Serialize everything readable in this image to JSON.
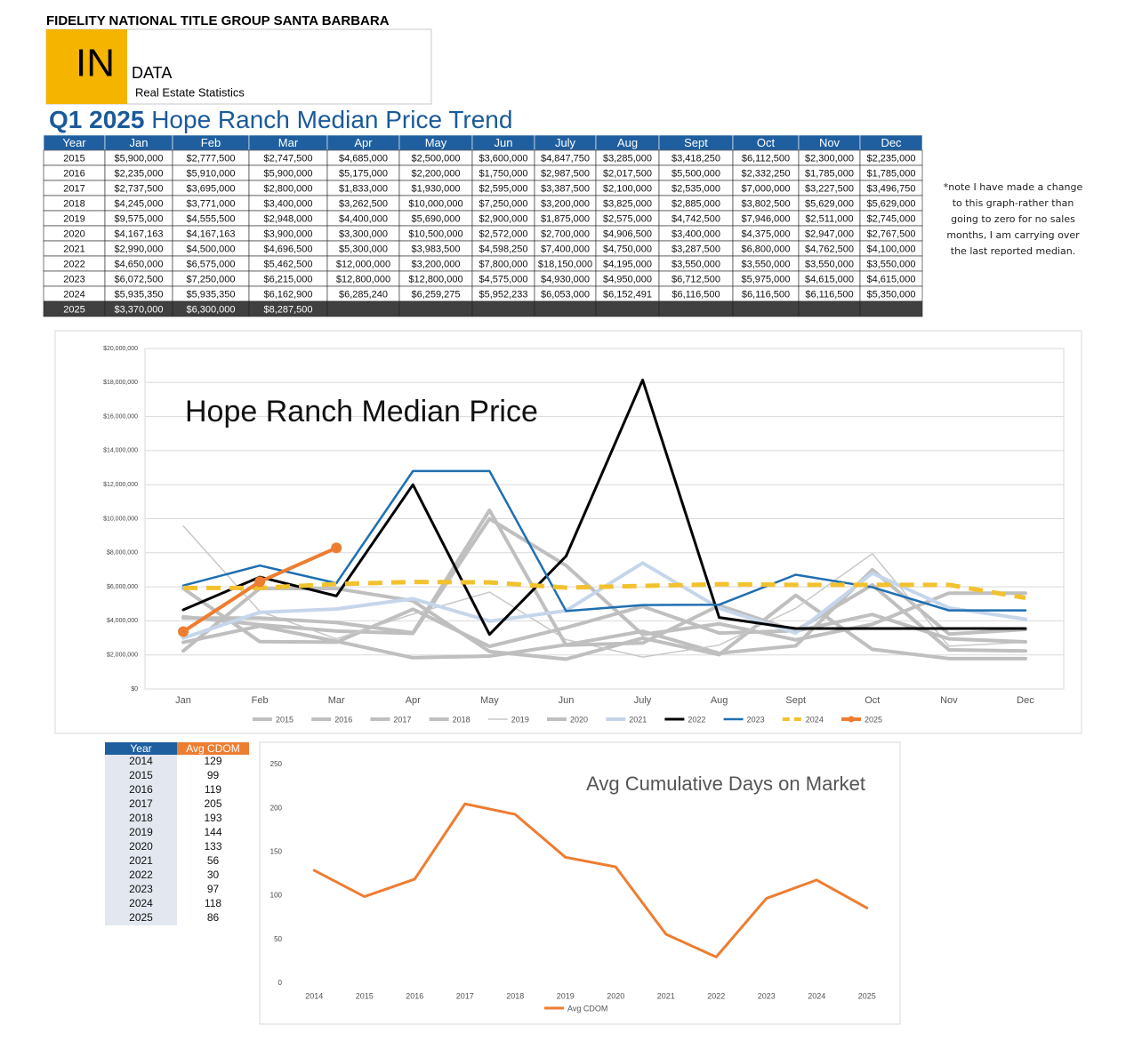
{
  "header": {
    "company": "FIDELITY NATIONAL TITLE GROUP SANTA BARBARA",
    "logo_mark": "IN",
    "logo_word": "DATA",
    "logo_tagline": "Real Estate Statistics"
  },
  "page_title": {
    "bold": "Q1 2025",
    "rest": "Hope Ranch Median Price Trend"
  },
  "price_table": {
    "year_header": "Year"
  },
  "note": "*note I have made a change to this graph-rather than going to zero for no sales months, I am carrying over the last reported median.",
  "cdom_table": {
    "year_header": "Year"
  },
  "chart_data": [
    {
      "type": "line",
      "title": "Hope Ranch Median Price",
      "categories": [
        "Jan",
        "Feb",
        "Mar",
        "Apr",
        "May",
        "Jun",
        "July",
        "Aug",
        "Sept",
        "Oct",
        "Nov",
        "Dec"
      ],
      "ylim": [
        0,
        20000000
      ],
      "yticks": [
        {
          "value": 0,
          "label": "$0"
        },
        {
          "value": 2000000,
          "label": "$2,000,000"
        },
        {
          "value": 4000000,
          "label": "$4,000,000"
        },
        {
          "value": 6000000,
          "label": "$6,000,000"
        },
        {
          "value": 8000000,
          "label": "$8,000,000"
        },
        {
          "value": 10000000,
          "label": "$10,000,000"
        },
        {
          "value": 12000000,
          "label": "$12,000,000"
        },
        {
          "value": 14000000,
          "label": "$14,000,000"
        },
        {
          "value": 16000000,
          "label": "$16,000,000"
        },
        {
          "value": 18000000,
          "label": "$18,000,000"
        },
        {
          "value": 20000000,
          "label": "$20,000,000"
        }
      ],
      "grid": true,
      "legend": "bottom",
      "series": [
        {
          "name": "2015",
          "color": "#bfbfbf",
          "width": 4,
          "values": [
            5900000,
            2777500,
            2747500,
            4685000,
            2500000,
            3600000,
            4847750,
            3285000,
            3418250,
            6112500,
            2300000,
            2235000
          ],
          "value_labels": [
            "$5,900,000",
            "$2,777,500",
            "$2,747,500",
            "$4,685,000",
            "$2,500,000",
            "$3,600,000",
            "$4,847,750",
            "$3,285,000",
            "$3,418,250",
            "$6,112,500",
            "$2,300,000",
            "$2,235,000"
          ]
        },
        {
          "name": "2016",
          "color": "#bfbfbf",
          "width": 4,
          "values": [
            2235000,
            5910000,
            5900000,
            5175000,
            2200000,
            1750000,
            2987500,
            2017500,
            5500000,
            2332250,
            1785000,
            1785000
          ],
          "value_labels": [
            "$2,235,000",
            "$5,910,000",
            "$5,900,000",
            "$5,175,000",
            "$2,200,000",
            "$1,750,000",
            "$2,987,500",
            "$2,017,500",
            "$5,500,000",
            "$2,332,250",
            "$1,785,000",
            "$1,785,000"
          ]
        },
        {
          "name": "2017",
          "color": "#bfbfbf",
          "width": 4,
          "values": [
            2737500,
            3695000,
            2800000,
            1833000,
            1930000,
            2595000,
            3387500,
            2100000,
            2535000,
            7000000,
            3227500,
            3496750
          ],
          "value_labels": [
            "$2,737,500",
            "$3,695,000",
            "$2,800,000",
            "$1,833,000",
            "$1,930,000",
            "$2,595,000",
            "$3,387,500",
            "$2,100,000",
            "$2,535,000",
            "$7,000,000",
            "$3,227,500",
            "$3,496,750"
          ]
        },
        {
          "name": "2018",
          "color": "#bfbfbf",
          "width": 4,
          "values": [
            4245000,
            3771000,
            3400000,
            3262500,
            10000000,
            7250000,
            3200000,
            3825000,
            2885000,
            3802500,
            5629000,
            5629000
          ],
          "value_labels": [
            "$4,245,000",
            "$3,771,000",
            "$3,400,000",
            "$3,262,500",
            "$10,000,000",
            "$7,250,000",
            "$3,200,000",
            "$3,825,000",
            "$2,885,000",
            "$3,802,500",
            "$5,629,000",
            "$5,629,000"
          ]
        },
        {
          "name": "2019",
          "color": "#c8c8c8",
          "width": 1.5,
          "values": [
            9575000,
            4555500,
            2948000,
            4400000,
            5690000,
            2900000,
            1875000,
            2575000,
            4742500,
            7946000,
            2511000,
            2745000
          ],
          "value_labels": [
            "$9,575,000",
            "$4,555,500",
            "$2,948,000",
            "$4,400,000",
            "$5,690,000",
            "$2,900,000",
            "$1,875,000",
            "$2,575,000",
            "$4,742,500",
            "$7,946,000",
            "$2,511,000",
            "$2,745,000"
          ]
        },
        {
          "name": "2020",
          "color": "#bfbfbf",
          "width": 4,
          "values": [
            4167163,
            4167163,
            3900000,
            3300000,
            10500000,
            2572000,
            2700000,
            4906500,
            3400000,
            4375000,
            2947000,
            2767500
          ],
          "value_labels": [
            "$4,167,163",
            "$4,167,163",
            "$3,900,000",
            "$3,300,000",
            "$10,500,000",
            "$2,572,000",
            "$2,700,000",
            "$4,906,500",
            "$3,400,000",
            "$4,375,000",
            "$2,947,000",
            "$2,767,500"
          ]
        },
        {
          "name": "2021",
          "color": "#c6d6ea",
          "width": 4,
          "values": [
            2990000,
            4500000,
            4696500,
            5300000,
            3983500,
            4598250,
            7400000,
            4750000,
            3287500,
            6800000,
            4762500,
            4100000
          ],
          "value_labels": [
            "$2,990,000",
            "$4,500,000",
            "$4,696,500",
            "$5,300,000",
            "$3,983,500",
            "$4,598,250",
            "$7,400,000",
            "$4,750,000",
            "$3,287,500",
            "$6,800,000",
            "$4,762,500",
            "$4,100,000"
          ]
        },
        {
          "name": "2022",
          "color": "#000000",
          "width": 3,
          "values": [
            4650000,
            6575000,
            5462500,
            12000000,
            3200000,
            7800000,
            18150000,
            4195000,
            3550000,
            3550000,
            3550000,
            3550000
          ],
          "value_labels": [
            "$4,650,000",
            "$6,575,000",
            "$5,462,500",
            "$12,000,000",
            "$3,200,000",
            "$7,800,000",
            "$18,150,000",
            "$4,195,000",
            "$3,550,000",
            "$3,550,000",
            "$3,550,000",
            "$3,550,000"
          ]
        },
        {
          "name": "2023",
          "color": "#1f6fb0",
          "width": 2.5,
          "values": [
            6072500,
            7250000,
            6215000,
            12800000,
            12800000,
            4575000,
            4930000,
            4950000,
            6712500,
            5975000,
            4615000,
            4615000
          ],
          "value_labels": [
            "$6,072,500",
            "$7,250,000",
            "$6,215,000",
            "$12,800,000",
            "$12,800,000",
            "$4,575,000",
            "$4,930,000",
            "$4,950,000",
            "$6,712,500",
            "$5,975,000",
            "$4,615,000",
            "$4,615,000"
          ]
        },
        {
          "name": "2024",
          "color": "#f2c12e",
          "width": 5,
          "dash": true,
          "values": [
            5935350,
            5935350,
            6162900,
            6285240,
            6259275,
            5952233,
            6053000,
            6152491,
            6116500,
            6116500,
            6116500,
            5350000
          ],
          "value_labels": [
            "$5,935,350",
            "$5,935,350",
            "$6,162,900",
            "$6,285,240",
            "$6,259,275",
            "$5,952,233",
            "$6,053,000",
            "$6,152,491",
            "$6,116,500",
            "$6,116,500",
            "$6,116,500",
            "$5,350,000"
          ]
        },
        {
          "name": "2025",
          "color": "#ed7d31",
          "width": 4,
          "markers": true,
          "values": [
            3370000,
            6300000,
            8287500,
            null,
            null,
            null,
            null,
            null,
            null,
            null,
            null,
            null
          ],
          "value_labels": [
            "$3,370,000",
            "$6,300,000",
            "$8,287,500",
            null,
            null,
            null,
            null,
            null,
            null,
            null,
            null,
            null
          ]
        }
      ]
    },
    {
      "type": "line",
      "title": "Avg Cumulative Days on Market",
      "categories": [
        "2014",
        "2015",
        "2016",
        "2017",
        "2018",
        "2019",
        "2020",
        "2021",
        "2022",
        "2023",
        "2024",
        "2025"
      ],
      "ylim": [
        0,
        250
      ],
      "yticks": [
        0,
        50,
        100,
        150,
        200,
        250
      ],
      "grid": false,
      "legend": "bottom",
      "series": [
        {
          "name": "Avg CDOM",
          "color": "#ed7d31",
          "width": 3,
          "values": [
            129,
            99,
            119,
            205,
            193,
            144,
            133,
            56,
            30,
            97,
            118,
            86
          ]
        }
      ]
    }
  ]
}
